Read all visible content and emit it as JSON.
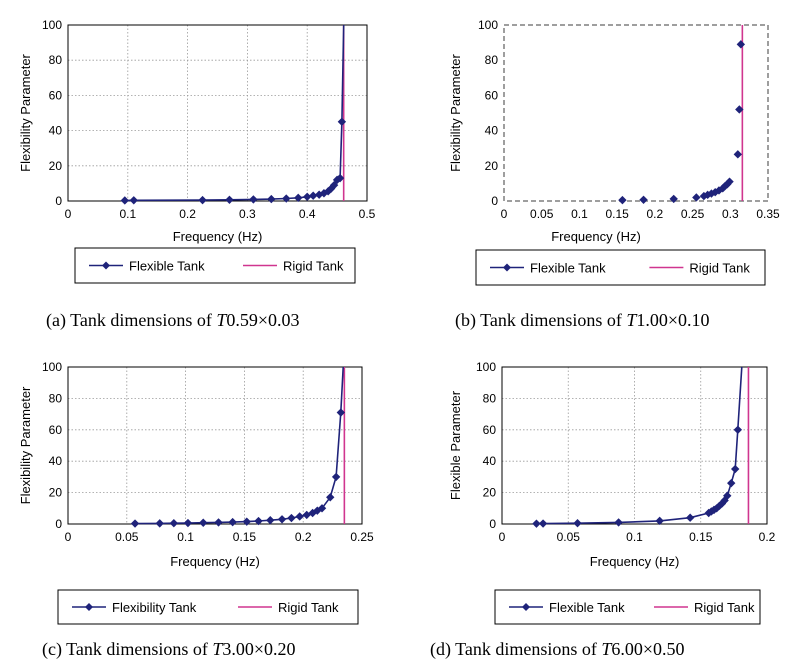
{
  "colors": {
    "flexible": "#1f237a",
    "rigid": "#d0358f",
    "grid": "#9a9a9a",
    "frame_b": "#7f7f7f"
  },
  "chart_data": [
    {
      "type": "line",
      "panel": "a",
      "caption": {
        "prefix": "(a) Tank dimensions of ",
        "var": "T",
        "dims": "0.59×0.03"
      },
      "xlabel": "Frequency (Hz)",
      "ylabel": "Flexibility Parameter",
      "xlim": [
        0,
        0.5
      ],
      "ylim": [
        0,
        100
      ],
      "xticks": [
        "0",
        "0.1",
        "0.2",
        "0.3",
        "0.4",
        "0.5"
      ],
      "yticks": [
        "0",
        "20",
        "40",
        "60",
        "80",
        "100"
      ],
      "grid": "dotted",
      "legend": [
        "Flexible Tank",
        "Rigid Tank"
      ],
      "rigid_x": 0.461,
      "series": [
        {
          "name": "Flexible Tank",
          "x": [
            0.095,
            0.11,
            0.225,
            0.27,
            0.31,
            0.34,
            0.365,
            0.385,
            0.4,
            0.41,
            0.42,
            0.428,
            0.435,
            0.44,
            0.445,
            0.45,
            0.455,
            0.458,
            0.461
          ],
          "y": [
            0.3,
            0.4,
            0.5,
            0.7,
            0.9,
            1.1,
            1.4,
            1.8,
            2.4,
            3.0,
            3.6,
            4.4,
            5.5,
            7.0,
            9.0,
            12.0,
            13.0,
            45.0,
            100
          ]
        }
      ]
    },
    {
      "type": "line",
      "panel": "b",
      "caption": {
        "prefix": "(b) Tank dimensions of ",
        "var": "T",
        "dims": "1.00×0.10"
      },
      "xlabel": "Frequency (Hz)",
      "ylabel": "Flexibility Parameter",
      "xlim": [
        0,
        0.35
      ],
      "ylim": [
        0,
        100
      ],
      "xticks": [
        "0",
        "0.05",
        "0.1",
        "0.15",
        "0.2",
        "0.25",
        "0.3",
        "0.35"
      ],
      "yticks": [
        "0",
        "20",
        "40",
        "60",
        "80",
        "100"
      ],
      "grid": "none",
      "legend": [
        "Flexible Tank",
        "Rigid Tank"
      ],
      "rigid_x": 0.316,
      "series": [
        {
          "name": "Flexible Tank",
          "markers_only": true,
          "x": [
            0.157,
            0.185,
            0.225,
            0.255,
            0.265,
            0.27,
            0.275,
            0.28,
            0.285,
            0.29,
            0.293,
            0.296,
            0.299,
            0.31,
            0.312,
            0.314
          ],
          "y": [
            0.5,
            0.7,
            1.2,
            2.0,
            2.8,
            3.5,
            4.2,
            5.0,
            6.0,
            7.2,
            8.5,
            9.5,
            11.0,
            26.5,
            52.0,
            89.0
          ]
        }
      ]
    },
    {
      "type": "line",
      "panel": "c",
      "caption": {
        "prefix": "(c) Tank dimensions of ",
        "var": "T",
        "dims": "3.00×0.20"
      },
      "xlabel": "Frequency (Hz)",
      "ylabel": "Flexibility Parameter",
      "xlim": [
        0,
        0.25
      ],
      "ylim": [
        0,
        100
      ],
      "xticks": [
        "0",
        "0.05",
        "0.1",
        "0.15",
        "0.2",
        "0.25"
      ],
      "yticks": [
        "0",
        "20",
        "40",
        "60",
        "80",
        "100"
      ],
      "grid": "dotted",
      "legend": [
        "Flexibility Tank",
        "Rigid Tank"
      ],
      "rigid_x": 0.235,
      "series": [
        {
          "name": "Flexibility Tank",
          "x": [
            0.057,
            0.078,
            0.09,
            0.102,
            0.115,
            0.128,
            0.14,
            0.152,
            0.162,
            0.172,
            0.182,
            0.19,
            0.197,
            0.203,
            0.208,
            0.212,
            0.216,
            0.223,
            0.228,
            0.232,
            0.234
          ],
          "y": [
            0.3,
            0.4,
            0.5,
            0.6,
            0.8,
            1.0,
            1.2,
            1.5,
            1.9,
            2.4,
            3.0,
            3.8,
            4.8,
            5.8,
            7.0,
            8.5,
            10.0,
            17.0,
            30.0,
            71.0,
            100
          ]
        }
      ]
    },
    {
      "type": "line",
      "panel": "d",
      "caption": {
        "prefix": "(d) Tank dimensions of ",
        "var": "T",
        "dims": "6.00×0.50"
      },
      "xlabel": "Frequency (Hz)",
      "ylabel": "Flexible Parameter",
      "xlim": [
        0,
        0.2
      ],
      "ylim": [
        0,
        100
      ],
      "xticks": [
        "0",
        "0.05",
        "0.1",
        "0.15",
        "0.2"
      ],
      "yticks": [
        "0",
        "20",
        "40",
        "60",
        "80",
        "100"
      ],
      "grid": "dotted",
      "legend": [
        "Flexible Tank",
        "Rigid Tank"
      ],
      "rigid_x": 0.186,
      "series": [
        {
          "name": "Flexible Tank",
          "x": [
            0.026,
            0.031,
            0.057,
            0.088,
            0.119,
            0.142,
            0.156,
            0.158,
            0.16,
            0.162,
            0.164,
            0.166,
            0.168,
            0.17,
            0.173,
            0.176,
            0.178,
            0.181
          ],
          "y": [
            0.2,
            0.3,
            0.5,
            1.0,
            2.0,
            4.0,
            7.0,
            8.0,
            9.0,
            10.0,
            11.5,
            13.0,
            15.0,
            18.0,
            26.0,
            35.0,
            60.0,
            100
          ]
        }
      ]
    }
  ]
}
